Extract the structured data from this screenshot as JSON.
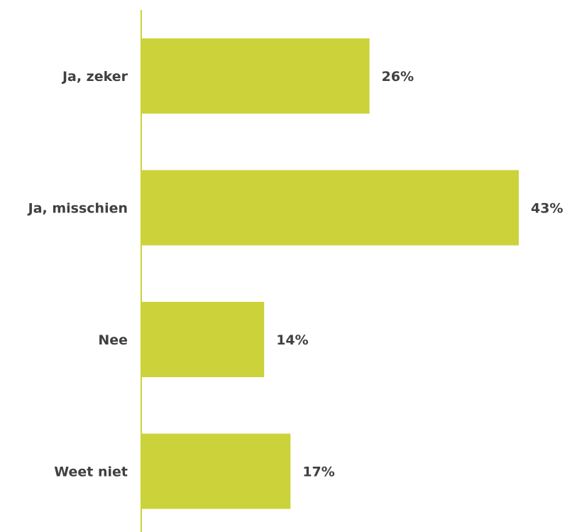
{
  "chart_data": {
    "type": "bar",
    "orientation": "horizontal",
    "categories": [
      "Ja, zeker",
      "Ja, misschien",
      "Nee",
      "Weet niet"
    ],
    "values": [
      26,
      43,
      14,
      17
    ],
    "value_labels": [
      "26%",
      "43%",
      "14%",
      "17%"
    ],
    "unit": "%",
    "xlim": [
      0,
      43
    ],
    "grid": false,
    "bar_color": "#CCD23A",
    "axis_color": "#CCD23A",
    "text_color": "#404040"
  }
}
